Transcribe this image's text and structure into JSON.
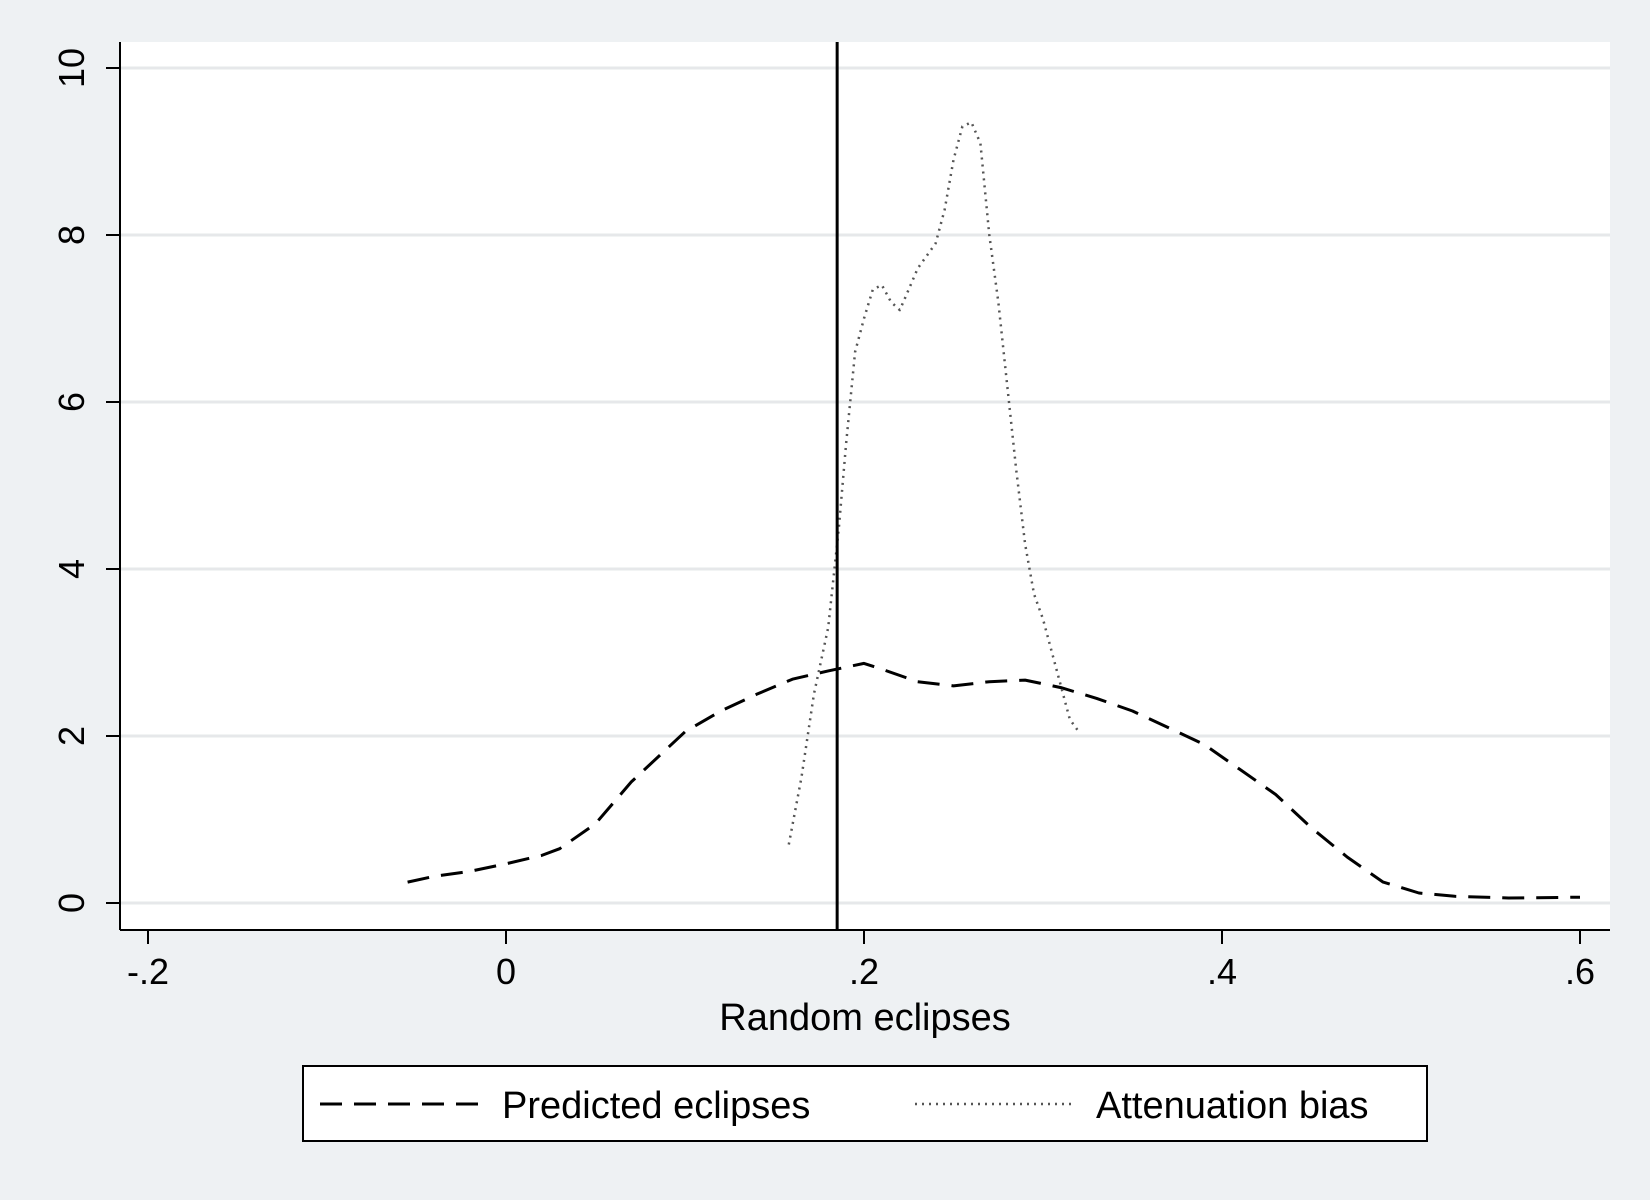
{
  "chart_data": {
    "type": "line",
    "title": "",
    "xlabel": "Random eclipses",
    "ylabel": "",
    "xlim": [
      -0.2,
      0.6
    ],
    "ylim": [
      0,
      10
    ],
    "x_ticks": [
      -0.2,
      0,
      0.2,
      0.4,
      0.6
    ],
    "x_tick_labels": [
      "-.2",
      "0",
      ".2",
      ".4",
      ".6"
    ],
    "y_ticks": [
      0,
      2,
      4,
      6,
      8,
      10
    ],
    "y_tick_labels": [
      "0",
      "2",
      "4",
      "6",
      "8",
      "10"
    ],
    "grid": true,
    "legend_position": "bottom",
    "reference_line_x": 0.185,
    "series": [
      {
        "name": "Predicted eclipses",
        "style": "dashed",
        "color": "#000000",
        "points": [
          [
            -0.055,
            0.25
          ],
          [
            -0.04,
            0.32
          ],
          [
            -0.02,
            0.38
          ],
          [
            0.0,
            0.47
          ],
          [
            0.02,
            0.57
          ],
          [
            0.03,
            0.65
          ],
          [
            0.05,
            0.95
          ],
          [
            0.07,
            1.45
          ],
          [
            0.09,
            1.85
          ],
          [
            0.1,
            2.05
          ],
          [
            0.12,
            2.3
          ],
          [
            0.14,
            2.5
          ],
          [
            0.16,
            2.68
          ],
          [
            0.18,
            2.78
          ],
          [
            0.2,
            2.87
          ],
          [
            0.21,
            2.8
          ],
          [
            0.23,
            2.65
          ],
          [
            0.25,
            2.6
          ],
          [
            0.27,
            2.65
          ],
          [
            0.29,
            2.67
          ],
          [
            0.31,
            2.58
          ],
          [
            0.33,
            2.45
          ],
          [
            0.35,
            2.3
          ],
          [
            0.37,
            2.1
          ],
          [
            0.39,
            1.9
          ],
          [
            0.41,
            1.6
          ],
          [
            0.43,
            1.3
          ],
          [
            0.45,
            0.9
          ],
          [
            0.47,
            0.55
          ],
          [
            0.49,
            0.25
          ],
          [
            0.51,
            0.12
          ],
          [
            0.53,
            0.08
          ],
          [
            0.56,
            0.06
          ],
          [
            0.6,
            0.07
          ]
        ]
      },
      {
        "name": "Attenuation bias",
        "style": "dotted",
        "color": "#555555",
        "points": [
          [
            0.158,
            0.7
          ],
          [
            0.165,
            1.5
          ],
          [
            0.172,
            2.5
          ],
          [
            0.18,
            3.3
          ],
          [
            0.186,
            4.5
          ],
          [
            0.19,
            5.5
          ],
          [
            0.195,
            6.6
          ],
          [
            0.2,
            7.0
          ],
          [
            0.205,
            7.35
          ],
          [
            0.21,
            7.4
          ],
          [
            0.215,
            7.2
          ],
          [
            0.22,
            7.1
          ],
          [
            0.225,
            7.35
          ],
          [
            0.23,
            7.6
          ],
          [
            0.24,
            7.9
          ],
          [
            0.245,
            8.3
          ],
          [
            0.25,
            8.9
          ],
          [
            0.255,
            9.3
          ],
          [
            0.26,
            9.35
          ],
          [
            0.265,
            9.1
          ],
          [
            0.27,
            8.0
          ],
          [
            0.275,
            7.2
          ],
          [
            0.28,
            6.2
          ],
          [
            0.285,
            5.2
          ],
          [
            0.29,
            4.3
          ],
          [
            0.295,
            3.7
          ],
          [
            0.3,
            3.4
          ],
          [
            0.31,
            2.6
          ],
          [
            0.315,
            2.2
          ],
          [
            0.32,
            2.05
          ]
        ]
      }
    ]
  }
}
